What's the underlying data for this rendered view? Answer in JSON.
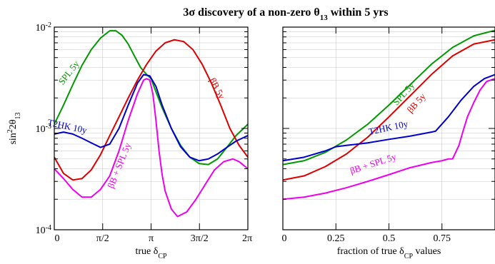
{
  "chart_data": {
    "type": "line",
    "title": "3σ discovery of a non-zero θ₁₃ within 5 yrs",
    "ylabel": "sin²2θ₁₃",
    "yscale": "log",
    "ylim": [
      0.0001,
      0.01
    ],
    "y_tick_labels": [
      "10⁻²",
      "10⁻³",
      "10⁻⁴"
    ],
    "grid": true,
    "panels": [
      {
        "id": "left",
        "xlabel": "true δ_CP",
        "xlim": [
          0,
          6.2832
        ],
        "x_ticks": [
          {
            "value": 0,
            "label": "0"
          },
          {
            "value": 1.5708,
            "label": "π/2"
          },
          {
            "value": 3.1416,
            "label": "π"
          },
          {
            "value": 4.7124,
            "label": "3π/2"
          },
          {
            "value": 6.2832,
            "label": "2π"
          }
        ],
        "series": [
          {
            "name": "SPL 5y",
            "color": "#009900",
            "x": [
              0,
              0.3,
              0.6,
              0.9,
              1.2,
              1.5,
              1.8,
              2.0,
              2.2,
              2.4,
              2.6,
              2.8,
              3.0,
              3.1416,
              3.3,
              3.5,
              3.8,
              4.1,
              4.4,
              4.7,
              5.0,
              5.3,
              5.6,
              5.9,
              6.2832
            ],
            "y": [
              0.0011,
              0.0017,
              0.0027,
              0.0042,
              0.006,
              0.0078,
              0.0092,
              0.0092,
              0.0083,
              0.0068,
              0.0052,
              0.004,
              0.0034,
              0.0031,
              0.0023,
              0.0016,
              0.001,
              0.00068,
              0.00052,
              0.00045,
              0.00044,
              0.0005,
              0.00065,
              0.00085,
              0.0011
            ]
          },
          {
            "name": "βB 5y",
            "color": "#dd0000",
            "x": [
              0,
              0.3,
              0.6,
              0.9,
              1.2,
              1.5,
              1.8,
              2.1,
              2.4,
              2.7,
              3.0,
              3.3,
              3.6,
              3.9,
              4.2,
              4.5,
              4.8,
              5.1,
              5.4,
              5.7,
              6.0,
              6.2832
            ],
            "y": [
              0.00052,
              0.00036,
              0.00031,
              0.00032,
              0.00039,
              0.00055,
              0.00085,
              0.0013,
              0.002,
              0.003,
              0.0043,
              0.0058,
              0.007,
              0.0075,
              0.0072,
              0.006,
              0.0043,
              0.0028,
              0.0017,
              0.001,
              0.00068,
              0.00052
            ]
          },
          {
            "name": "T2HK 10y",
            "color": "#0000cc",
            "x": [
              0,
              0.3,
              0.6,
              0.9,
              1.2,
              1.5,
              1.8,
              2.1,
              2.4,
              2.7,
              2.9,
              3.1,
              3.3,
              3.5,
              3.8,
              4.1,
              4.4,
              4.7,
              5.0,
              5.3,
              5.6,
              5.9,
              6.2832
            ],
            "y": [
              0.00088,
              0.00092,
              0.00088,
              0.0008,
              0.00072,
              0.00065,
              0.0007,
              0.001,
              0.0017,
              0.0028,
              0.0034,
              0.0033,
              0.0026,
              0.0017,
              0.001,
              0.00066,
              0.00052,
              0.00048,
              0.0005,
              0.00056,
              0.00065,
              0.00075,
              0.00085
            ]
          },
          {
            "name": "βB + SPL 5y",
            "color": "#ee00ee",
            "x": [
              0,
              0.3,
              0.6,
              0.9,
              1.2,
              1.5,
              1.8,
              2.1,
              2.4,
              2.7,
              2.9,
              3.0,
              3.1,
              3.2,
              3.3,
              3.4,
              3.5,
              3.6,
              3.8,
              4.0,
              4.3,
              4.6,
              4.9,
              5.2,
              5.5,
              5.8,
              6.0,
              6.2832
            ],
            "y": [
              0.0004,
              0.00032,
              0.00025,
              0.00021,
              0.00021,
              0.00025,
              0.00034,
              0.0006,
              0.0012,
              0.0022,
              0.003,
              0.0031,
              0.003,
              0.0022,
              0.0012,
              0.0006,
              0.00035,
              0.00024,
              0.00016,
              0.000135,
              0.00015,
              0.0002,
              0.00028,
              0.00039,
              0.00047,
              0.0005,
              0.00047,
              0.0004
            ]
          }
        ]
      },
      {
        "id": "right",
        "xlabel": "fraction of true δ_CP values",
        "xlim": [
          0,
          1
        ],
        "x_ticks": [
          {
            "value": 0,
            "label": "0"
          },
          {
            "value": 0.25,
            "label": "0.25"
          },
          {
            "value": 0.5,
            "label": "0.5"
          },
          {
            "value": 0.75,
            "label": "0.75"
          }
        ],
        "series": [
          {
            "name": "SPL 5y",
            "color": "#009900",
            "x": [
              0,
              0.1,
              0.2,
              0.3,
              0.4,
              0.5,
              0.6,
              0.7,
              0.8,
              0.9,
              1.0
            ],
            "y": [
              0.00044,
              0.00048,
              0.00058,
              0.00077,
              0.0011,
              0.0017,
              0.0027,
              0.0043,
              0.0063,
              0.0082,
              0.0093
            ]
          },
          {
            "name": "βB 5y",
            "color": "#dd0000",
            "x": [
              0,
              0.1,
              0.2,
              0.3,
              0.4,
              0.5,
              0.6,
              0.7,
              0.8,
              0.9,
              1.0
            ],
            "y": [
              0.00031,
              0.00034,
              0.00042,
              0.00056,
              0.00082,
              0.0013,
              0.0021,
              0.0034,
              0.0052,
              0.0068,
              0.0075
            ]
          },
          {
            "name": "T2HK 10y",
            "color": "#0000cc",
            "x": [
              0,
              0.1,
              0.2,
              0.25,
              0.3,
              0.4,
              0.5,
              0.6,
              0.7,
              0.72,
              0.78,
              0.84,
              0.9,
              0.95,
              1.0
            ],
            "y": [
              0.00048,
              0.00052,
              0.0006,
              0.00066,
              0.00068,
              0.00072,
              0.00078,
              0.00084,
              0.00092,
              0.00094,
              0.0013,
              0.0019,
              0.0026,
              0.0031,
              0.0034
            ]
          },
          {
            "name": "βB + SPL 5y",
            "color": "#ee00ee",
            "x": [
              0,
              0.1,
              0.2,
              0.3,
              0.4,
              0.5,
              0.6,
              0.7,
              0.75,
              0.78,
              0.8,
              0.83,
              0.85,
              0.87,
              0.9,
              0.93,
              0.96,
              1.0
            ],
            "y": [
              0.0002,
              0.00021,
              0.00023,
              0.00026,
              0.0003,
              0.00035,
              0.00041,
              0.00046,
              0.00048,
              0.0005,
              0.0005,
              0.00068,
              0.00095,
              0.0013,
              0.0018,
              0.0024,
              0.0029,
              0.0031
            ]
          }
        ]
      }
    ],
    "annotations": [
      {
        "panel": "left",
        "text": "SPL 5y",
        "series": "SPL 5y",
        "x": 0.55,
        "y": 0.0034,
        "rotate": -52
      },
      {
        "panel": "left",
        "text": "βB 5y",
        "series": "βB 5y",
        "x": 5.2,
        "y": 0.0024,
        "rotate": 62
      },
      {
        "panel": "left",
        "text": "T2HK 10y",
        "series": "T2HK 10y",
        "x": 0.4,
        "y": 0.00098,
        "rotate": 12
      },
      {
        "panel": "left",
        "text": "βB + SPL 5y",
        "series": "βB + SPL 5y",
        "x": 2.2,
        "y": 0.00042,
        "rotate": -68
      },
      {
        "panel": "right",
        "text": "SPL 5y",
        "series": "SPL 5y",
        "x": 0.58,
        "y": 0.0021,
        "rotate": -48
      },
      {
        "panel": "right",
        "text": "βB 5y",
        "series": "βB 5y",
        "x": 0.64,
        "y": 0.0017,
        "rotate": -48
      },
      {
        "panel": "right",
        "text": "T2HK 10y",
        "series": "T2HK 10y",
        "x": 0.5,
        "y": 0.00095,
        "rotate": -12
      },
      {
        "panel": "right",
        "text": "βB + SPL 5y",
        "series": "βB + SPL 5y",
        "x": 0.43,
        "y": 0.00042,
        "rotate": -18
      }
    ]
  }
}
